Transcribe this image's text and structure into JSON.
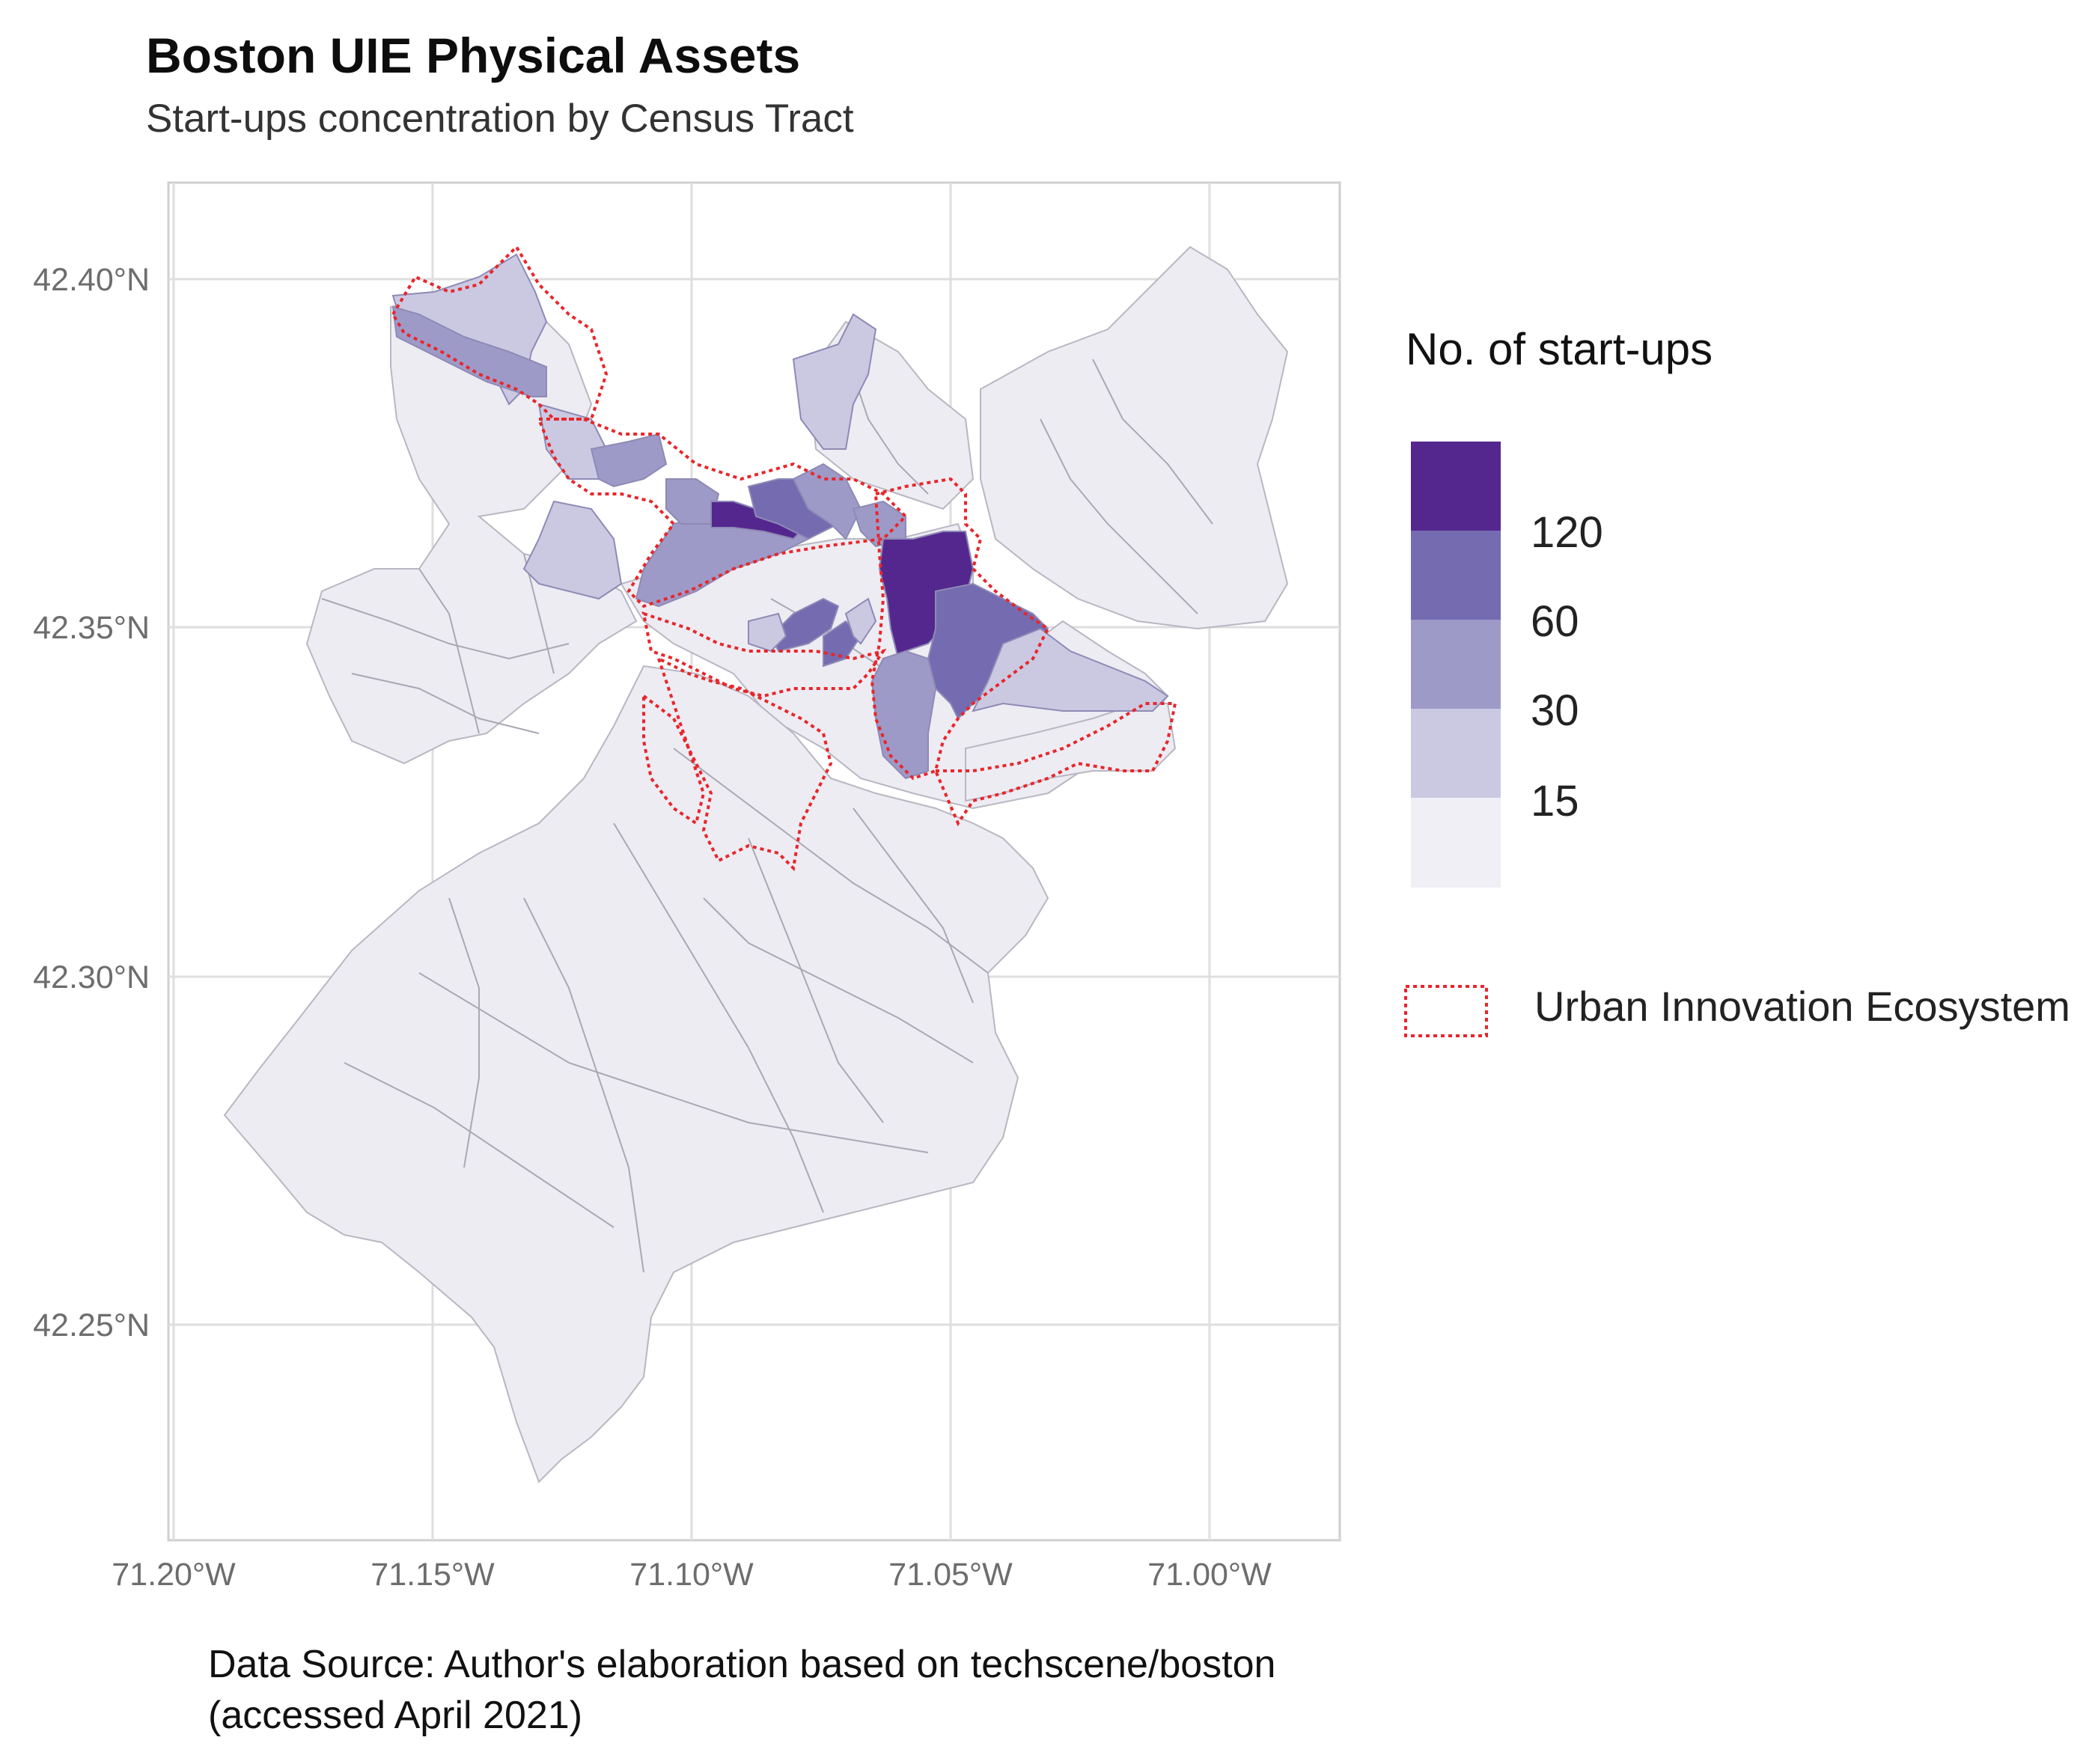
{
  "title": "Boston UIE Physical Assets",
  "subtitle": "Start-ups concentration by Census Tract",
  "axes": {
    "lat_labels": [
      "42.40°N",
      "42.35°N",
      "42.30°N",
      "42.25°N"
    ],
    "lon_labels": [
      "71.20°W",
      "71.15°W",
      "71.10°W",
      "71.05°W",
      "71.00°W"
    ]
  },
  "legend": {
    "title": "No. of start-ups",
    "breaks": [
      "120",
      "60",
      "30",
      "15"
    ],
    "classes": [
      {
        "level": 5,
        "color": "#54278f"
      },
      {
        "level": 4,
        "color": "#756bb1"
      },
      {
        "level": 3,
        "color": "#9e9ac8"
      },
      {
        "level": 2,
        "color": "#cbc9e2"
      },
      {
        "level": 1,
        "color": "#f0eff6"
      }
    ],
    "uie_label": "Urban Innovation Ecosystem",
    "uie_color": "#e8262b"
  },
  "caption": {
    "line1": "Data Source:  Author's elaboration based on techscene/boston",
    "line2": "(accessed April 2021)"
  },
  "colors": {
    "background": "#ffffff",
    "panel_border": "#cfcfcf",
    "grid": "#dedede",
    "base_fill": "#edecf3",
    "tract_border": "#8e8e96"
  }
}
